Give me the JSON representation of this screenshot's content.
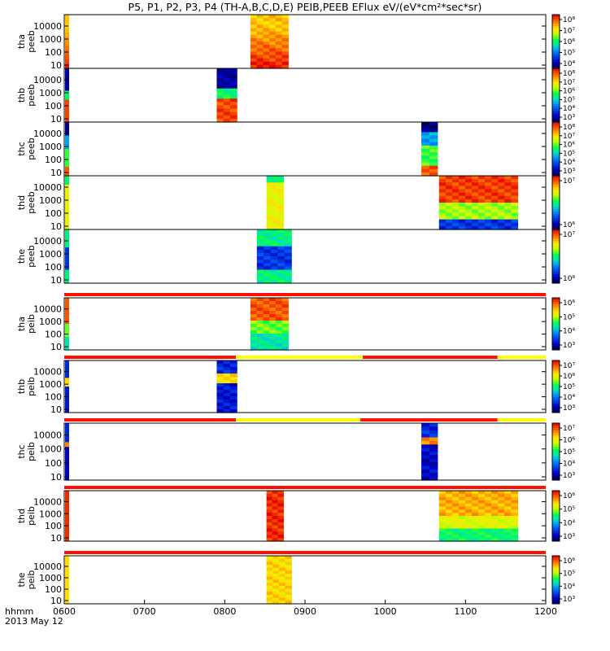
{
  "title": "P5, P1, P2, P3, P4 (TH-A,B,C,D,E) PEIB,PEEB EFlux eV/(eV*cm²*sec*sr)",
  "date_line": "2013 May 12",
  "x_axis_label": "hhmm",
  "colors": {
    "red": "#ff1000",
    "yellow": "#ffff00",
    "blue": "#0000cc",
    "green": "#00ff60"
  },
  "chart_data": [
    {
      "type": "heatmap",
      "panel": "tha-peeb",
      "ylabel": [
        "tha",
        "peeb"
      ],
      "yticks": [
        "10",
        "100",
        "1000",
        "10000"
      ],
      "cbar_ticks": [
        "10⁴",
        "10⁵",
        "10⁶",
        "10⁷",
        "10⁸"
      ],
      "bars": [],
      "data_windows": [
        [
          832,
          879
        ]
      ],
      "profile": "peeb_a"
    },
    {
      "type": "heatmap",
      "panel": "thb-peeb",
      "ylabel": [
        "thb",
        "peeb"
      ],
      "yticks": [
        "10",
        "100",
        "1000",
        "10000"
      ],
      "cbar_ticks": [
        "10³",
        "10⁴",
        "10⁵",
        "10⁶",
        "10⁷",
        "10⁸"
      ],
      "bars": [],
      "data_windows": [
        [
          790,
          815
        ]
      ],
      "profile": "peeb_b"
    },
    {
      "type": "heatmap",
      "panel": "thc-peeb",
      "ylabel": [
        "thc",
        "peeb"
      ],
      "yticks": [
        "10",
        "100",
        "1000",
        "10000"
      ],
      "cbar_ticks": [
        "10³",
        "10⁴",
        "10⁵",
        "10⁶",
        "10⁷",
        "10⁸"
      ],
      "bars": [],
      "data_windows": [
        [
          1045,
          1065
        ]
      ],
      "profile": "peeb_c"
    },
    {
      "type": "heatmap",
      "panel": "thd-peeb",
      "ylabel": [
        "thd",
        "peeb"
      ],
      "yticks": [
        "10",
        "100",
        "1000",
        "10000"
      ],
      "cbar_ticks": [
        "10⁶",
        "10⁷"
      ],
      "bars": [],
      "data_windows": [
        [
          852,
          873
        ],
        [
          1067,
          1165
        ]
      ],
      "profile": "peeb_d"
    },
    {
      "type": "heatmap",
      "panel": "the-peeb",
      "ylabel": [
        "the",
        "peeb"
      ],
      "yticks": [
        "10",
        "100",
        "1000",
        "10000"
      ],
      "cbar_ticks": [
        "10⁶",
        "10⁷"
      ],
      "bars": [],
      "data_windows": [
        [
          840,
          883
        ]
      ],
      "profile": "peeb_e"
    },
    {
      "type": "heatmap",
      "panel": "tha-peib",
      "ylabel": [
        "tha",
        "peib"
      ],
      "yticks": [
        "10",
        "100",
        "1000",
        "10000"
      ],
      "cbar_ticks": [
        "10³",
        "10⁴",
        "10⁵",
        "10⁶"
      ],
      "bars": [
        {
          "from": 600,
          "to": 1200,
          "color": "red"
        }
      ],
      "data_windows": [
        [
          832,
          879
        ]
      ],
      "profile": "peib_a"
    },
    {
      "type": "heatmap",
      "panel": "thb-peib",
      "ylabel": [
        "thb",
        "peib"
      ],
      "yticks": [
        "10",
        "100",
        "1000",
        "10000"
      ],
      "cbar_ticks": [
        "10³",
        "10⁴",
        "10⁵",
        "10⁶",
        "10⁷"
      ],
      "bars": [
        {
          "from": 600,
          "to": 814,
          "color": "red"
        },
        {
          "from": 814,
          "to": 972,
          "color": "yellow"
        },
        {
          "from": 972,
          "to": 1140,
          "color": "red"
        },
        {
          "from": 1140,
          "to": 1200,
          "color": "yellow"
        }
      ],
      "data_windows": [
        [
          790,
          815
        ]
      ],
      "profile": "peib_b"
    },
    {
      "type": "heatmap",
      "panel": "thc-peib",
      "ylabel": [
        "thc",
        "peib"
      ],
      "yticks": [
        "10",
        "100",
        "1000",
        "10000"
      ],
      "cbar_ticks": [
        "10³",
        "10⁴",
        "10⁵",
        "10⁶",
        "10⁷"
      ],
      "bars": [
        {
          "from": 600,
          "to": 814,
          "color": "red"
        },
        {
          "from": 814,
          "to": 969,
          "color": "yellow"
        },
        {
          "from": 969,
          "to": 1140,
          "color": "red"
        },
        {
          "from": 1140,
          "to": 1200,
          "color": "yellow"
        }
      ],
      "data_windows": [
        [
          1045,
          1065
        ]
      ],
      "profile": "peib_c"
    },
    {
      "type": "heatmap",
      "panel": "thd-peib",
      "ylabel": [
        "thd",
        "peib"
      ],
      "yticks": [
        "10",
        "100",
        "1000",
        "10000"
      ],
      "cbar_ticks": [
        "10³",
        "10⁴",
        "10⁵",
        "10⁶"
      ],
      "bars": [
        {
          "from": 600,
          "to": 1200,
          "color": "red"
        }
      ],
      "data_windows": [
        [
          852,
          873
        ],
        [
          1067,
          1165
        ]
      ],
      "profile": "peib_d"
    },
    {
      "type": "heatmap",
      "panel": "the-peib",
      "ylabel": [
        "the",
        "peib"
      ],
      "yticks": [
        "10",
        "100",
        "1000",
        "10000"
      ],
      "cbar_ticks": [
        "10³",
        "10⁴",
        "10⁵",
        "10⁶"
      ],
      "bars": [
        {
          "from": 600,
          "to": 1200,
          "color": "red"
        }
      ],
      "data_windows": [
        [
          852,
          883
        ]
      ],
      "profile": "peib_e"
    }
  ],
  "x_ticks": [
    "0600",
    "0700",
    "0800",
    "0900",
    "1000",
    "1100",
    "1200"
  ],
  "x_range": [
    600,
    1200
  ]
}
